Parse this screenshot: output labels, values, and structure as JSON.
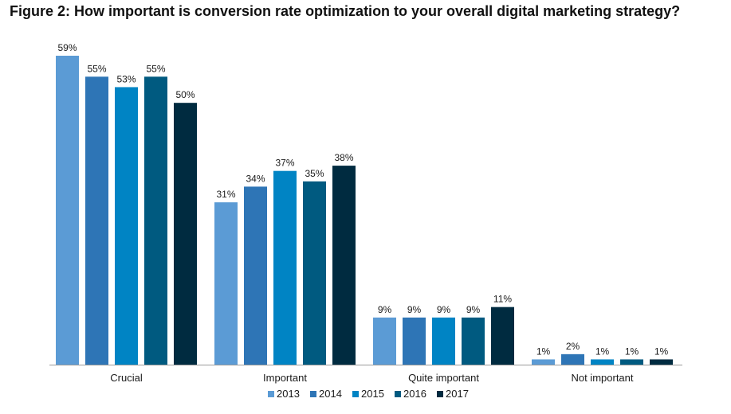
{
  "title": "Figure 2: How important is conversion rate optimization to your overall digital marketing strategy?",
  "chart_data": {
    "type": "bar",
    "categories": [
      "Crucial",
      "Important",
      "Quite important",
      "Not important"
    ],
    "series": [
      {
        "name": "2013",
        "color": "#5b9bd5",
        "values": [
          59,
          31,
          9,
          1
        ]
      },
      {
        "name": "2014",
        "color": "#2e75b6",
        "values": [
          55,
          34,
          9,
          2
        ]
      },
      {
        "name": "2015",
        "color": "#0084c4",
        "values": [
          53,
          37,
          9,
          1
        ]
      },
      {
        "name": "2016",
        "color": "#005a80",
        "values": [
          55,
          35,
          9,
          1
        ]
      },
      {
        "name": "2017",
        "color": "#002b40",
        "values": [
          50,
          38,
          11,
          1
        ]
      }
    ],
    "value_suffix": "%",
    "ylim": [
      0,
      59
    ],
    "grid": false,
    "legend_position": "bottom"
  }
}
